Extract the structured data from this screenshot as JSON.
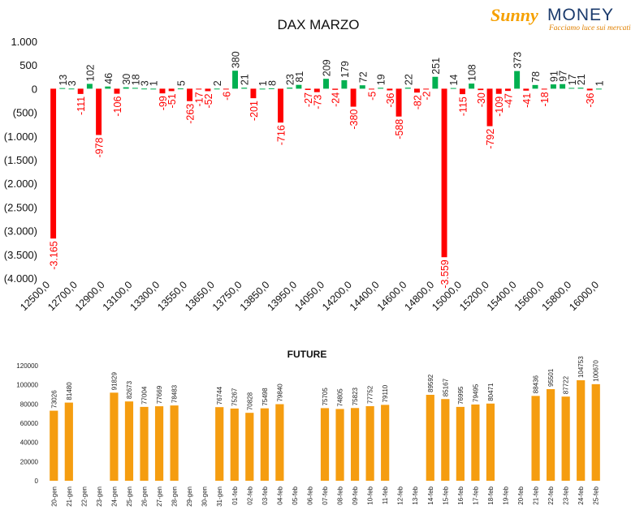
{
  "logo": {
    "brand_sun": "Sunny",
    "brand_money": "MONEY",
    "tagline": "Facciamo luce sui mercati"
  },
  "chart_data": [
    {
      "type": "bar",
      "title": "DAX MARZO",
      "ylim": [
        -4000,
        1000
      ],
      "y_ticks": [
        1000,
        500,
        0,
        -500,
        -1000,
        -1500,
        -2000,
        -2500,
        -3000,
        -3500,
        -4000
      ],
      "y_tick_labels": [
        "1.000",
        "500",
        "0",
        "(500)",
        "(1.000)",
        "(1.500)",
        "(2.000)",
        "(2.500)",
        "(3.000)",
        "(3.500)",
        "(4.000)"
      ],
      "x_tick_labels": [
        "12500,0",
        "12700,0",
        "12900,0",
        "13100,0",
        "13300,0",
        "13550,0",
        "13650,0",
        "13750,0",
        "13850,0",
        "13950,0",
        "14050,0",
        "14200,0",
        "14400,0",
        "14600,0",
        "14800,0",
        "15000,0",
        "15200,0",
        "15400,0",
        "15600,0",
        "15800,0",
        "16000,0"
      ],
      "grid": false,
      "legend": "none",
      "colors": {
        "positive": "#00b050",
        "negative": "#ff0000",
        "positive_label": "#222222",
        "negative_label": "#ff0000"
      },
      "bars": [
        {
          "label": "-3.165",
          "value": -3165
        },
        {
          "label": "13",
          "value": 13
        },
        {
          "label": "3",
          "value": 3
        },
        {
          "label": "-111",
          "value": -111
        },
        {
          "label": "102",
          "value": 102
        },
        {
          "label": "-978",
          "value": -978
        },
        {
          "label": "46",
          "value": 46
        },
        {
          "label": "-106",
          "value": -106
        },
        {
          "label": "30",
          "value": 30
        },
        {
          "label": "18",
          "value": 18
        },
        {
          "label": "3",
          "value": 3
        },
        {
          "label": "1",
          "value": 1
        },
        {
          "label": "-99",
          "value": -99
        },
        {
          "label": "-51",
          "value": -51
        },
        {
          "label": "5",
          "value": 5
        },
        {
          "label": "-263",
          "value": -263
        },
        {
          "label": "-17",
          "value": -17
        },
        {
          "label": "-52",
          "value": -52
        },
        {
          "label": "2",
          "value": 2
        },
        {
          "label": "-6",
          "value": -6
        },
        {
          "label": "380",
          "value": 380
        },
        {
          "label": "21",
          "value": 21
        },
        {
          "label": "-201",
          "value": -201
        },
        {
          "label": "1",
          "value": 1
        },
        {
          "label": "8",
          "value": 8
        },
        {
          "label": "-716",
          "value": -716
        },
        {
          "label": "23",
          "value": 23
        },
        {
          "label": "81",
          "value": 81
        },
        {
          "label": "-27",
          "value": -27
        },
        {
          "label": "-73",
          "value": -73
        },
        {
          "label": "209",
          "value": 209
        },
        {
          "label": "-24",
          "value": -24
        },
        {
          "label": "179",
          "value": 179
        },
        {
          "label": "-380",
          "value": -380
        },
        {
          "label": "72",
          "value": 72
        },
        {
          "label": "-5",
          "value": -5
        },
        {
          "label": "19",
          "value": 19
        },
        {
          "label": "-36",
          "value": -36
        },
        {
          "label": "-588",
          "value": -588
        },
        {
          "label": "22",
          "value": 22
        },
        {
          "label": "-82",
          "value": -82
        },
        {
          "label": "-2",
          "value": -2
        },
        {
          "label": "251",
          "value": 251
        },
        {
          "label": "-3.559",
          "value": -3559
        },
        {
          "label": "14",
          "value": 14
        },
        {
          "label": "-115",
          "value": -115
        },
        {
          "label": "108",
          "value": 108
        },
        {
          "label": "-30",
          "value": -30
        },
        {
          "label": "-792",
          "value": -792
        },
        {
          "label": "-109",
          "value": -109
        },
        {
          "label": "-47",
          "value": -47
        },
        {
          "label": "373",
          "value": 373
        },
        {
          "label": "-41",
          "value": -41
        },
        {
          "label": "78",
          "value": 78
        },
        {
          "label": "-18",
          "value": -18
        },
        {
          "label": "91",
          "value": 91
        },
        {
          "label": "97",
          "value": 97
        },
        {
          "label": "17",
          "value": 17
        },
        {
          "label": "21",
          "value": 21
        },
        {
          "label": "-36",
          "value": -36
        },
        {
          "label": "1",
          "value": 1
        }
      ]
    },
    {
      "type": "bar",
      "title": "FUTURE",
      "ylim": [
        0,
        120000
      ],
      "y_ticks": [
        0,
        20000,
        40000,
        60000,
        80000,
        100000,
        120000
      ],
      "grid": false,
      "legend": "none",
      "color": "#f59d10",
      "categories": [
        "20-gen",
        "21-gen",
        "22-gen",
        "23-gen",
        "24-gen",
        "25-gen",
        "26-gen",
        "27-gen",
        "28-gen",
        "29-gen",
        "30-gen",
        "31-gen",
        "01-feb",
        "02-feb",
        "03-feb",
        "04-feb",
        "05-feb",
        "06-feb",
        "07-feb",
        "08-feb",
        "09-feb",
        "10-feb",
        "11-feb",
        "12-feb",
        "13-feb",
        "14-feb",
        "15-feb",
        "16-feb",
        "17-feb",
        "18-feb",
        "19-feb",
        "20-feb",
        "21-feb",
        "22-feb",
        "23-feb",
        "24-feb",
        "25-feb"
      ],
      "values": [
        73026,
        81480,
        null,
        null,
        91829,
        82673,
        77004,
        77669,
        78483,
        null,
        null,
        76744,
        75267,
        70828,
        75498,
        79840,
        null,
        null,
        75705,
        74805,
        75823,
        77752,
        79110,
        null,
        null,
        89592,
        85167,
        76995,
        79495,
        80471,
        null,
        null,
        88436,
        95501,
        87722,
        104753,
        100670
      ]
    }
  ]
}
